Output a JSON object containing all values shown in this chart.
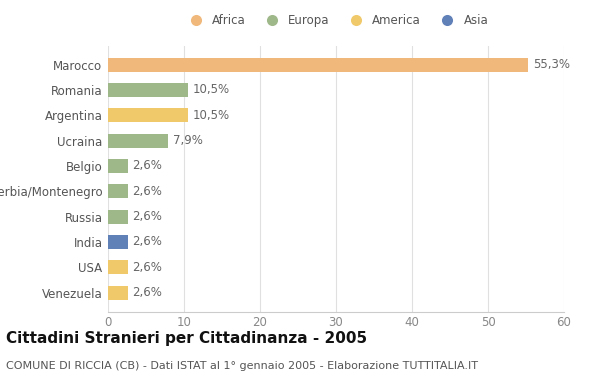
{
  "countries": [
    "Venezuela",
    "USA",
    "India",
    "Russia",
    "Serbia/Montenegro",
    "Belgio",
    "Ucraina",
    "Argentina",
    "Romania",
    "Marocco"
  ],
  "values": [
    2.6,
    2.6,
    2.6,
    2.6,
    2.6,
    2.6,
    7.9,
    10.5,
    10.5,
    55.3
  ],
  "labels": [
    "2,6%",
    "2,6%",
    "2,6%",
    "2,6%",
    "2,6%",
    "2,6%",
    "7,9%",
    "10,5%",
    "10,5%",
    "55,3%"
  ],
  "colors": [
    "#f0c96a",
    "#f0c96a",
    "#6080b8",
    "#9fb88a",
    "#9fb88a",
    "#9fb88a",
    "#9fb88a",
    "#f0c96a",
    "#9fb88a",
    "#f0b87a"
  ],
  "legend_items": [
    {
      "label": "Africa",
      "color": "#f0b87a"
    },
    {
      "label": "Europa",
      "color": "#9fb88a"
    },
    {
      "label": "America",
      "color": "#f0c96a"
    },
    {
      "label": "Asia",
      "color": "#6080b8"
    }
  ],
  "xlim": [
    0,
    60
  ],
  "xticks": [
    0,
    10,
    20,
    30,
    40,
    50,
    60
  ],
  "title": "Cittadini Stranieri per Cittadinanza - 2005",
  "subtitle": "COMUNE DI RICCIA (CB) - Dati ISTAT al 1° gennaio 2005 - Elaborazione TUTTITALIA.IT",
  "background_color": "#ffffff",
  "grid_color": "#e0e0e0",
  "title_fontsize": 11,
  "subtitle_fontsize": 8,
  "label_fontsize": 8.5,
  "tick_fontsize": 8.5,
  "bar_height": 0.55
}
